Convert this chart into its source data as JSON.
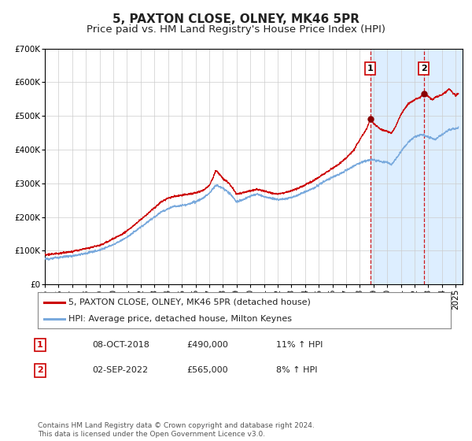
{
  "title": "5, PAXTON CLOSE, OLNEY, MK46 5PR",
  "subtitle": "Price paid vs. HM Land Registry's House Price Index (HPI)",
  "ylim": [
    0,
    700000
  ],
  "xlim_start": 1995.0,
  "xlim_end": 2025.5,
  "yticks": [
    0,
    100000,
    200000,
    300000,
    400000,
    500000,
    600000,
    700000
  ],
  "ytick_labels": [
    "£0",
    "£100K",
    "£200K",
    "£300K",
    "£400K",
    "£500K",
    "£600K",
    "£700K"
  ],
  "xticks": [
    1995,
    1996,
    1997,
    1998,
    1999,
    2000,
    2001,
    2002,
    2003,
    2004,
    2005,
    2006,
    2007,
    2008,
    2009,
    2010,
    2011,
    2012,
    2013,
    2014,
    2015,
    2016,
    2017,
    2018,
    2019,
    2020,
    2021,
    2022,
    2023,
    2024,
    2025
  ],
  "sale1_x": 2018.77,
  "sale1_y": 490000,
  "sale1_label": "1",
  "sale1_date": "08-OCT-2018",
  "sale1_price": "£490,000",
  "sale1_hpi": "11% ↑ HPI",
  "sale2_x": 2022.67,
  "sale2_y": 565000,
  "sale2_label": "2",
  "sale2_date": "02-SEP-2022",
  "sale2_price": "£565,000",
  "sale2_hpi": "8% ↑ HPI",
  "red_line_color": "#cc0000",
  "blue_line_color": "#7aaadd",
  "grid_color": "#cccccc",
  "background_color": "#ffffff",
  "sale_marker_color": "#880000",
  "shaded_region_color": "#ddeeff",
  "legend_label_red": "5, PAXTON CLOSE, OLNEY, MK46 5PR (detached house)",
  "legend_label_blue": "HPI: Average price, detached house, Milton Keynes",
  "footer_text": "Contains HM Land Registry data © Crown copyright and database right 2024.\nThis data is licensed under the Open Government Licence v3.0.",
  "title_fontsize": 11,
  "subtitle_fontsize": 9.5,
  "tick_fontsize": 7.5,
  "legend_fontsize": 8,
  "footer_fontsize": 6.5
}
